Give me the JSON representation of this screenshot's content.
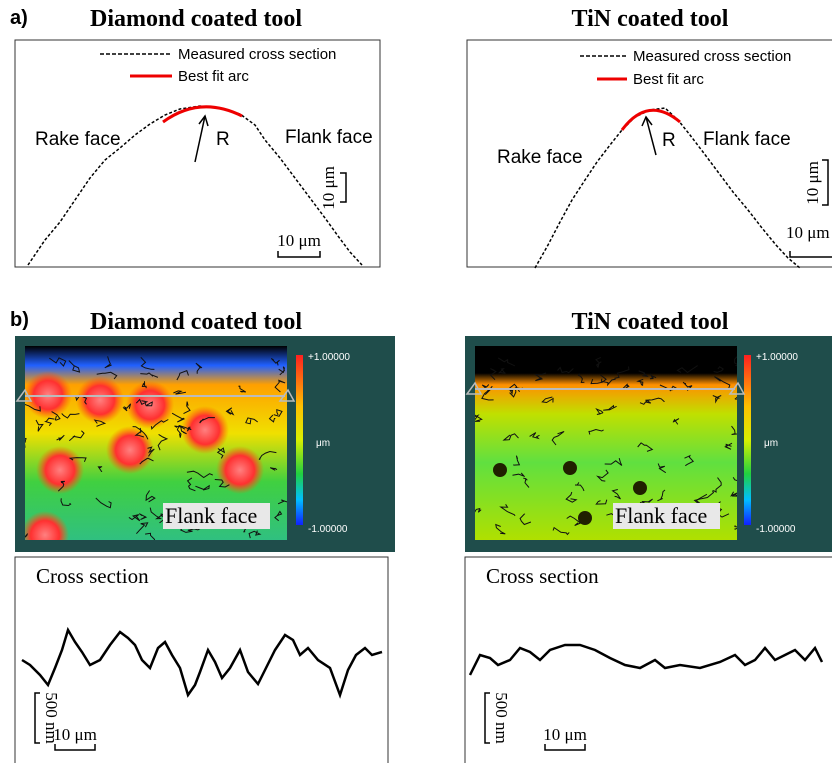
{
  "panel_a": {
    "label": "a)",
    "left": {
      "title": "Diamond coated tool",
      "legend": [
        "Measured cross section",
        "Best fit arc"
      ],
      "rake_label": "Rake face",
      "flank_label": "Flank face",
      "radius_label": "R",
      "scale_vertical": "10 μm",
      "scale_horizontal": "10 μm"
    },
    "right": {
      "title": "TiN coated tool",
      "legend": [
        "Measured cross section",
        "Best fit arc"
      ],
      "rake_label": "Rake face",
      "flank_label": "Flank face",
      "radius_label": "R",
      "scale_vertical": "10 μm",
      "scale_horizontal": "10 μm"
    }
  },
  "panel_b": {
    "label": "b)",
    "left": {
      "title": "Diamond coated tool",
      "colorbar": {
        "max": "+1.00000",
        "unit": "μm",
        "min": "-1.00000"
      },
      "surface_label": "Flank face",
      "profile_title": "Cross section",
      "scale_vertical": "500 nm",
      "scale_horizontal": "10 μm"
    },
    "right": {
      "title": "TiN coated tool",
      "colorbar": {
        "max": "+1.00000",
        "unit": "μm",
        "min": "-1.00000"
      },
      "surface_label": "Flank face",
      "profile_title": "Cross section",
      "scale_vertical": "500 nm",
      "scale_horizontal": "10 μm"
    }
  }
}
